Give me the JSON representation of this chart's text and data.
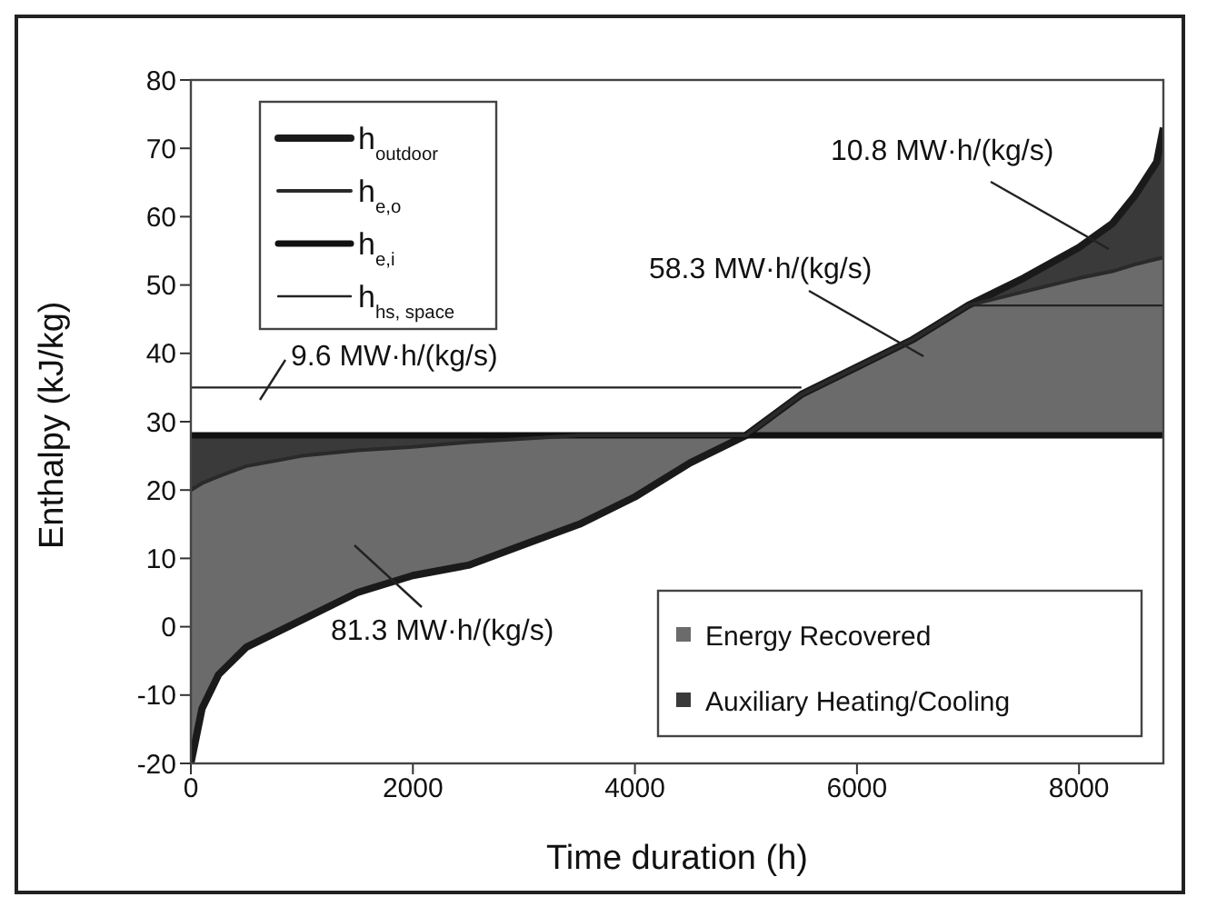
{
  "chart_data": {
    "type": "line",
    "xlabel": "Time duration (h)",
    "ylabel": "Enthalpy (kJ/kg)",
    "x": [
      0,
      100,
      250,
      500,
      1000,
      1500,
      2000,
      2500,
      3000,
      3500,
      4000,
      4500,
      5000,
      5500,
      6000,
      6500,
      7000,
      7500,
      8000,
      8300,
      8500,
      8700,
      8760
    ],
    "series": [
      {
        "name": "Energy Recovered",
        "type": "area",
        "color": "#6b6b6b",
        "values": [
          null,
          null,
          null,
          null,
          null,
          null,
          null,
          null,
          null,
          null,
          null,
          null,
          null,
          null,
          null,
          null,
          null,
          null,
          null,
          null,
          null,
          null,
          null
        ],
        "upper": [
          20,
          21,
          22,
          23.5,
          25,
          25.8,
          26.3,
          27,
          27.5,
          28,
          28,
          28,
          28,
          34,
          38,
          42,
          47,
          49,
          51,
          52,
          53,
          53.8,
          54
        ],
        "lower": [
          -20,
          -12,
          -7,
          -3,
          1,
          5,
          7.5,
          9,
          12,
          15,
          19,
          24,
          28,
          28,
          28,
          28,
          28,
          28,
          28,
          28,
          28,
          28,
          28
        ]
      },
      {
        "name": "Auxiliary Heating/Cooling",
        "type": "area",
        "color": "#3a3a3a",
        "values": [
          null,
          null,
          null,
          null,
          null,
          null,
          null,
          null,
          null,
          null,
          null,
          null,
          null,
          null,
          null,
          null,
          null,
          null,
          null,
          null,
          null,
          null,
          null
        ],
        "upper": [
          28,
          28,
          28,
          28,
          28,
          28,
          28,
          28,
          28,
          28,
          null,
          null,
          null,
          null,
          null,
          null,
          47,
          51,
          55.5,
          59,
          63,
          68,
          73
        ],
        "lower": [
          20,
          21,
          22,
          23.5,
          25,
          25.8,
          26.3,
          27,
          27.5,
          28,
          null,
          null,
          null,
          null,
          null,
          null,
          47,
          49,
          51,
          52,
          53,
          53.8,
          54
        ]
      },
      {
        "name": "h$_{outdoor}$",
        "color": "#1a1a1a",
        "values": [
          -20,
          -12,
          -7,
          -3,
          1,
          5,
          7.5,
          9,
          12,
          15,
          19,
          24,
          28,
          34,
          38,
          42,
          47,
          51,
          55.5,
          59,
          63,
          68,
          73
        ]
      },
      {
        "name": "h$_{e,o}$",
        "color": "#2a2a2a",
        "values": [
          20,
          21,
          22,
          23.5,
          25,
          25.8,
          26.3,
          27,
          27.5,
          28,
          28,
          28,
          28,
          34,
          38,
          42,
          47,
          49,
          51,
          52,
          53,
          53.8,
          54
        ]
      },
      {
        "name": "h$_{e,i}$",
        "color": "#111111",
        "values": [
          28,
          28,
          28,
          28,
          28,
          28,
          28,
          28,
          28,
          28,
          28,
          28,
          28,
          28,
          28,
          28,
          28,
          28,
          28,
          28,
          28,
          28,
          28
        ]
      },
      {
        "name": "h$_{hs, space}$",
        "color": "#222222",
        "values": [
          35,
          35,
          35,
          35,
          35,
          35,
          35,
          35,
          35,
          35,
          35,
          35,
          35,
          35,
          null,
          null,
          47,
          47,
          47,
          47,
          47,
          47,
          47
        ]
      }
    ],
    "xlim": [
      0,
      8760
    ],
    "xticks": [
      0,
      2000,
      4000,
      6000,
      8000
    ],
    "ylim": [
      -20,
      80
    ],
    "yticks": [
      -20,
      -10,
      0,
      10,
      20,
      30,
      40,
      50,
      60,
      70,
      80
    ],
    "grid": false,
    "legend": "top left",
    "marker": "none",
    "line_style": "solid",
    "annotations": [
      "9.6 MW·h/(kg/s)",
      "81.3 MW·h/(kg/s)",
      "58.3 MW·h/(kg/s)",
      "10.8 MW·h/(kg/s)"
    ]
  }
}
